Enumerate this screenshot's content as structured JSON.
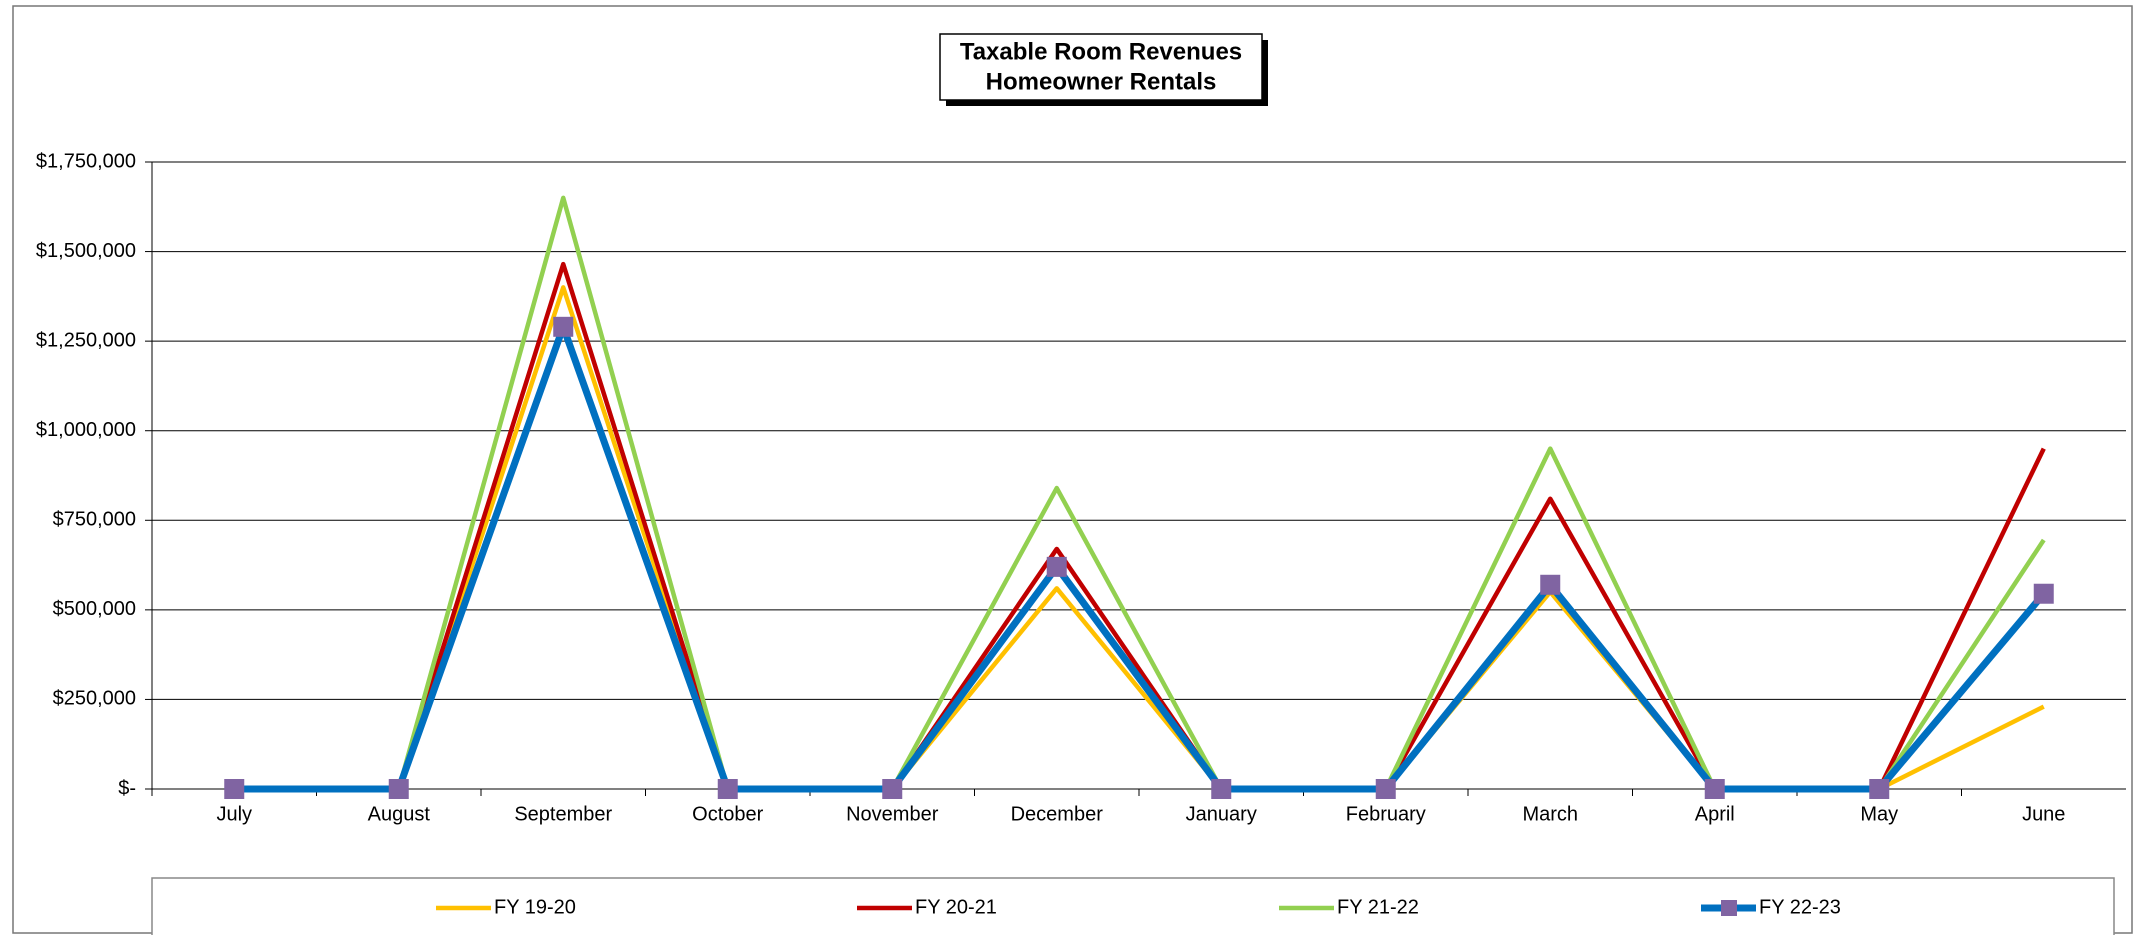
{
  "chart_data": {
    "type": "line",
    "title": "Taxable Room Revenues",
    "subtitle": "Homeowner Rentals",
    "categories": [
      "July",
      "August",
      "September",
      "October",
      "November",
      "December",
      "January",
      "February",
      "March",
      "April",
      "May",
      "June"
    ],
    "series": [
      {
        "name": "FY 19-20",
        "color": "#ffc000",
        "values": [
          0,
          0,
          1400000,
          0,
          0,
          560000,
          0,
          0,
          550000,
          0,
          0,
          230000
        ]
      },
      {
        "name": "FY 20-21",
        "color": "#c00000",
        "values": [
          0,
          0,
          1465000,
          0,
          0,
          670000,
          0,
          0,
          810000,
          0,
          0,
          950000
        ]
      },
      {
        "name": "FY 21-22",
        "color": "#92d050",
        "values": [
          0,
          0,
          1650000,
          0,
          0,
          840000,
          0,
          0,
          950000,
          0,
          0,
          695000
        ]
      },
      {
        "name": "FY 22-23",
        "color": "#0070c0",
        "marker": "square",
        "marker_color": "#8064a2",
        "values": [
          0,
          0,
          1290000,
          0,
          0,
          620000,
          0,
          0,
          570000,
          0,
          0,
          545000
        ]
      }
    ],
    "ylim": [
      0,
      1750000
    ],
    "yticks": [
      {
        "value": 0,
        "label": "$-"
      },
      {
        "value": 250000,
        "label": "$250,000"
      },
      {
        "value": 500000,
        "label": "$500,000"
      },
      {
        "value": 750000,
        "label": "$750,000"
      },
      {
        "value": 1000000,
        "label": "$1,000,000"
      },
      {
        "value": 1250000,
        "label": "$1,250,000"
      },
      {
        "value": 1500000,
        "label": "$1,500,000"
      },
      {
        "value": 1750000,
        "label": "$1,750,000"
      }
    ],
    "grid": true,
    "legend": "bottom"
  }
}
